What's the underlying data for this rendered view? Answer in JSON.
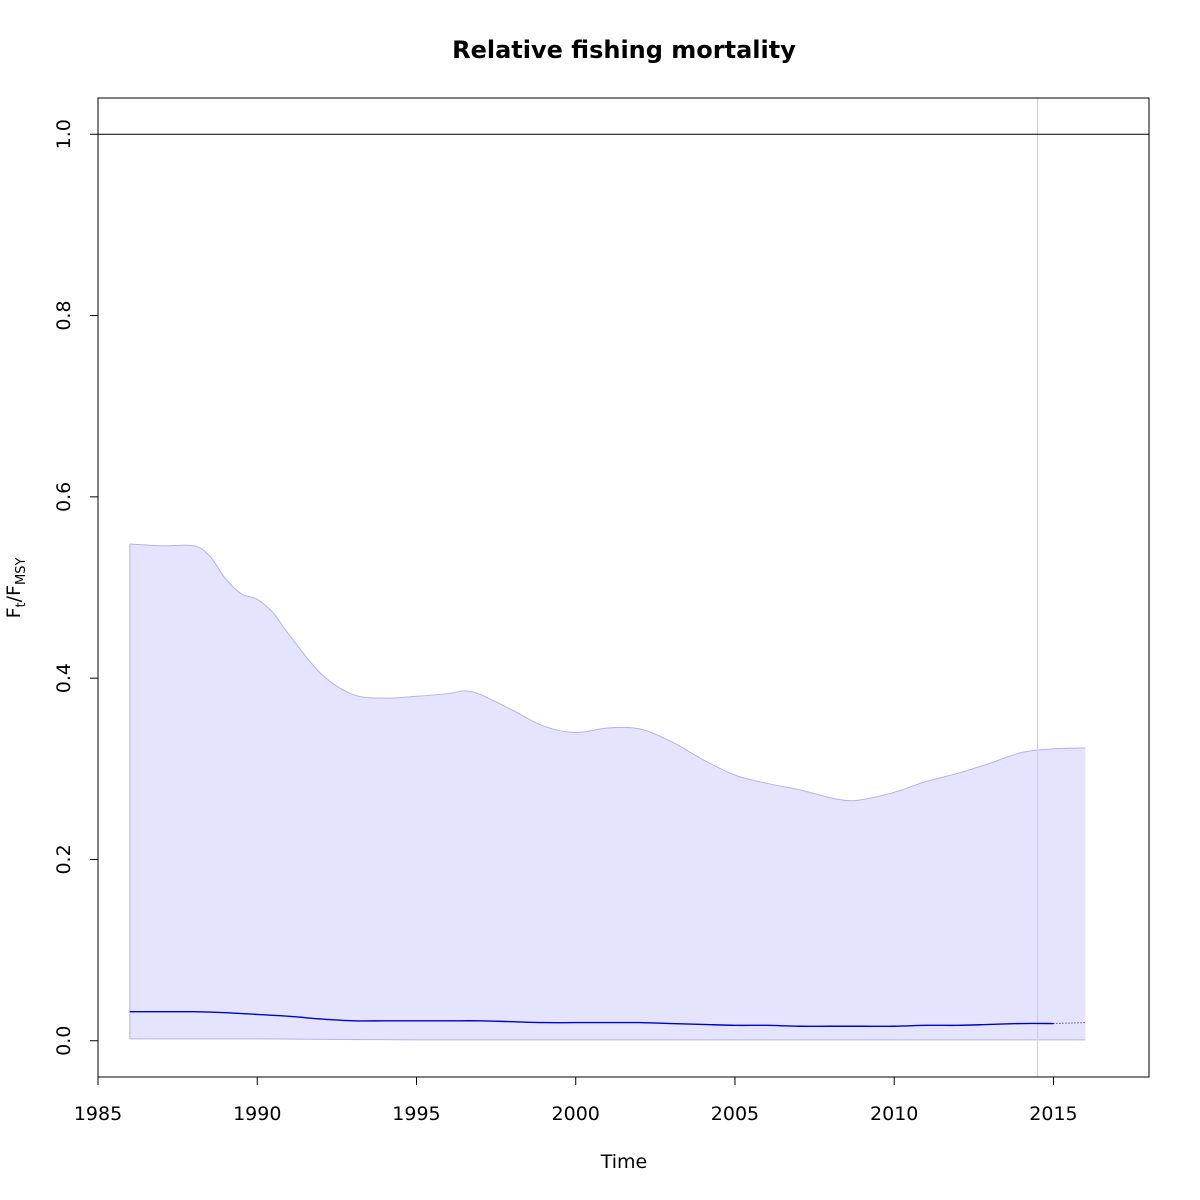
{
  "chart_data": {
    "type": "line",
    "title": "Relative fishing mortality",
    "xlabel": "Time",
    "ylabel": {
      "main": "F",
      "sub1": "t",
      "sep": "/F",
      "sub2": "MSY"
    },
    "xlim": [
      1985,
      2018
    ],
    "ylim": [
      -0.04,
      1.04
    ],
    "x_ticks": [
      1985,
      1990,
      1995,
      2000,
      2005,
      2010,
      2015
    ],
    "y_ticks": [
      0.0,
      0.2,
      0.4,
      0.6,
      0.8,
      1.0
    ],
    "y_tick_labels": [
      "0.0",
      "0.2",
      "0.4",
      "0.6",
      "0.8",
      "1.0"
    ],
    "reference_line_y": 1.0,
    "vertical_line_x": 2014.5,
    "grid": false,
    "colors": {
      "band_fill": "#e4e4ff",
      "band_edge": "#b3b3f0",
      "estimate_line": "#0000cc",
      "reference_line": "#000000",
      "vertical_line": "#d0d0dc"
    },
    "upper_ci": {
      "x": [
        1986,
        1987,
        1988,
        1988.5,
        1989,
        1989.5,
        1990,
        1990.5,
        1991,
        1992,
        1993,
        1994,
        1995,
        1996,
        1996.5,
        1997,
        1998,
        1999,
        2000,
        2001,
        2002,
        2003,
        2004,
        2005,
        2006,
        2007,
        2008,
        2008.5,
        2009,
        2010,
        2011,
        2012,
        2013,
        2014,
        2015,
        2016
      ],
      "y": [
        0.548,
        0.546,
        0.546,
        0.535,
        0.51,
        0.493,
        0.487,
        0.472,
        0.448,
        0.405,
        0.382,
        0.378,
        0.38,
        0.383,
        0.386,
        0.382,
        0.365,
        0.347,
        0.34,
        0.345,
        0.344,
        0.33,
        0.31,
        0.293,
        0.284,
        0.277,
        0.268,
        0.265,
        0.266,
        0.274,
        0.286,
        0.295,
        0.306,
        0.318,
        0.322,
        0.323
      ]
    },
    "lower_ci": {
      "x": [
        1986,
        1990,
        1995,
        2000,
        2005,
        2010,
        2015,
        2016
      ],
      "y": [
        0.002,
        0.002,
        0.001,
        0.001,
        0.001,
        0.001,
        0.001,
        0.001
      ]
    },
    "estimate": {
      "x": [
        1986,
        1987,
        1988,
        1989,
        1990,
        1991,
        1992,
        1993,
        1994,
        1995,
        1996,
        1997,
        1998,
        1999,
        2000,
        2001,
        2002,
        2003,
        2004,
        2005,
        2006,
        2007,
        2008,
        2009,
        2010,
        2011,
        2012,
        2013,
        2014,
        2015
      ],
      "y": [
        0.032,
        0.032,
        0.032,
        0.031,
        0.029,
        0.027,
        0.024,
        0.022,
        0.022,
        0.022,
        0.022,
        0.022,
        0.021,
        0.02,
        0.02,
        0.02,
        0.02,
        0.019,
        0.018,
        0.017,
        0.017,
        0.016,
        0.016,
        0.016,
        0.016,
        0.017,
        0.017,
        0.018,
        0.019,
        0.019
      ]
    },
    "forecast": {
      "x": [
        2015,
        2016
      ],
      "y": [
        0.019,
        0.02
      ]
    }
  }
}
